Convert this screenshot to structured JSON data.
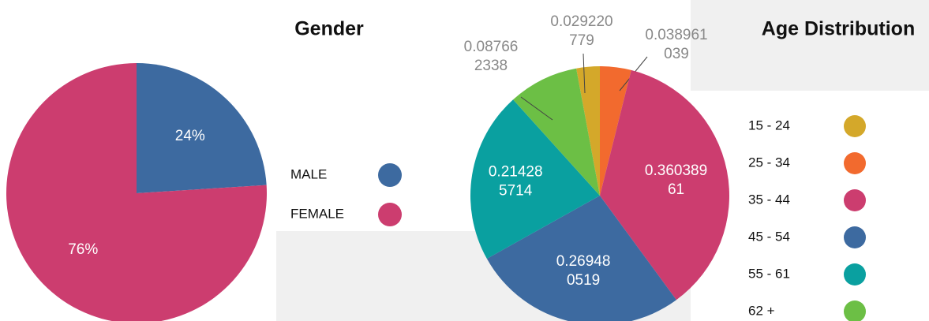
{
  "chart_data": [
    {
      "type": "pie",
      "title": "Gender",
      "categories": [
        "MALE",
        "FEMALE"
      ],
      "values": [
        24,
        76
      ],
      "value_labels": [
        "24%",
        "76%"
      ],
      "colors": [
        "#3d6aa0",
        "#cc3d6f"
      ]
    },
    {
      "type": "pie",
      "title": "Age Distribution",
      "categories": [
        "15 - 24",
        "25 - 34",
        "35 - 44",
        "45 - 54",
        "55 - 61",
        "62 +"
      ],
      "values": [
        0.029220779,
        0.038961039,
        0.36038961,
        0.269480519,
        0.214285714,
        0.087662338
      ],
      "colors": [
        "#d4a82a",
        "#f26a2e",
        "#cc3d6f",
        "#3d6aa0",
        "#0aa0a0",
        "#6cbf45"
      ]
    }
  ]
}
